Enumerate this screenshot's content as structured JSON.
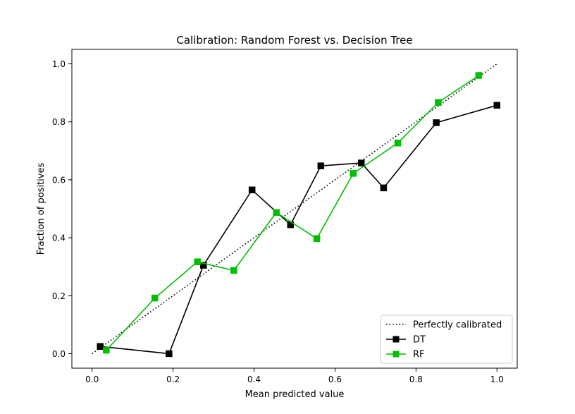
{
  "chart_data": {
    "type": "line",
    "title": "Calibration: Random Forest vs. Decision Tree",
    "xlabel": "Mean predicted value",
    "ylabel": "Fraction of positives",
    "xlim": [
      -0.05,
      1.05
    ],
    "ylim": [
      -0.05,
      1.05
    ],
    "xticks": [
      "0.0",
      "0.2",
      "0.4",
      "0.6",
      "0.8",
      "1.0"
    ],
    "yticks": [
      "0.0",
      "0.2",
      "0.4",
      "0.6",
      "0.8",
      "1.0"
    ],
    "grid": false,
    "legend_position": "lower-right",
    "series": [
      {
        "name": "Perfectly calibrated",
        "style": "dotted",
        "marker": "none",
        "color": "#000000",
        "x": [
          0.0,
          1.0
        ],
        "y": [
          0.0,
          1.0
        ]
      },
      {
        "name": "DT",
        "style": "solid",
        "marker": "square",
        "color": "#000000",
        "x": [
          0.02,
          0.19,
          0.275,
          0.395,
          0.49,
          0.565,
          0.665,
          0.72,
          0.85,
          1.0
        ],
        "y": [
          0.025,
          0.0,
          0.305,
          0.565,
          0.445,
          0.648,
          0.658,
          0.572,
          0.797,
          0.857
        ]
      },
      {
        "name": "RF",
        "style": "solid",
        "marker": "square",
        "color": "#00bf00",
        "x": [
          0.035,
          0.155,
          0.26,
          0.35,
          0.455,
          0.555,
          0.645,
          0.755,
          0.855,
          0.955
        ],
        "y": [
          0.012,
          0.192,
          0.317,
          0.287,
          0.487,
          0.397,
          0.622,
          0.727,
          0.867,
          0.96
        ]
      }
    ]
  }
}
